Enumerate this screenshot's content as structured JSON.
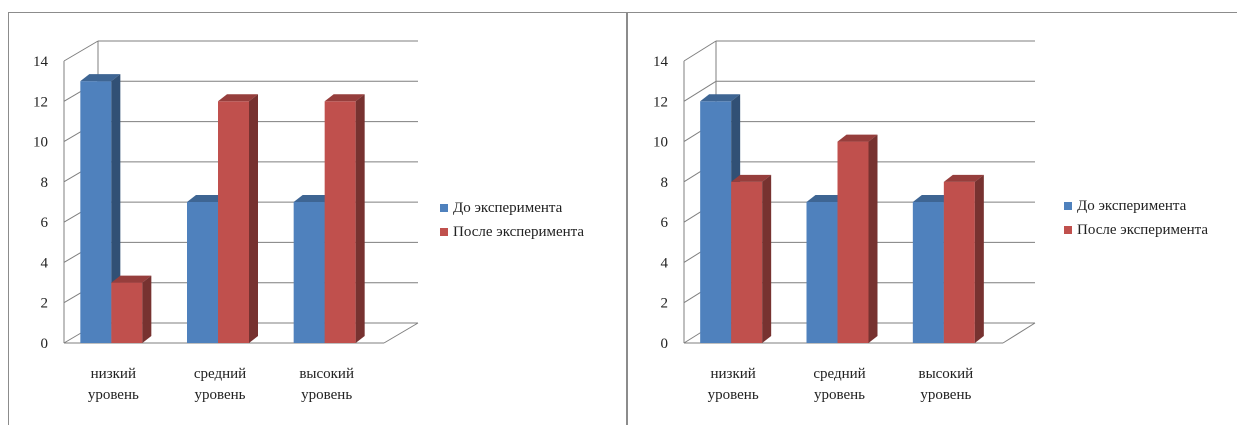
{
  "colors": {
    "series1": "#4f81bd",
    "series2": "#c0504d",
    "grid": "#7f7f7f",
    "border": "#8c8c8c"
  },
  "chart_data": [
    {
      "type": "bar",
      "categories": [
        [
          "низкий",
          "уровень"
        ],
        [
          "средний",
          "уровень"
        ],
        [
          "высокий",
          "уровень"
        ]
      ],
      "series": [
        {
          "name": "До эксперимента",
          "values": [
            13,
            7,
            7
          ]
        },
        {
          "name": "После эксперимента",
          "values": [
            3,
            12,
            12
          ]
        }
      ],
      "yticks": [
        "0",
        "2",
        "4",
        "6",
        "8",
        "10",
        "12",
        "14"
      ],
      "ylim": [
        0,
        14
      ],
      "grid": true,
      "style": "3d-clustered-column",
      "legend_position": "right"
    },
    {
      "type": "bar",
      "categories": [
        [
          "низкий",
          "уровень"
        ],
        [
          "средний",
          "уровень"
        ],
        [
          "высокий",
          "уровень"
        ]
      ],
      "series": [
        {
          "name": "До эксперимента",
          "values": [
            12,
            7,
            7
          ]
        },
        {
          "name": "После эксперимента",
          "values": [
            8,
            10,
            8
          ]
        }
      ],
      "yticks": [
        "0",
        "2",
        "4",
        "6",
        "8",
        "10",
        "12",
        "14"
      ],
      "ylim": [
        0,
        14
      ],
      "grid": true,
      "style": "3d-clustered-column",
      "legend_position": "right"
    }
  ]
}
